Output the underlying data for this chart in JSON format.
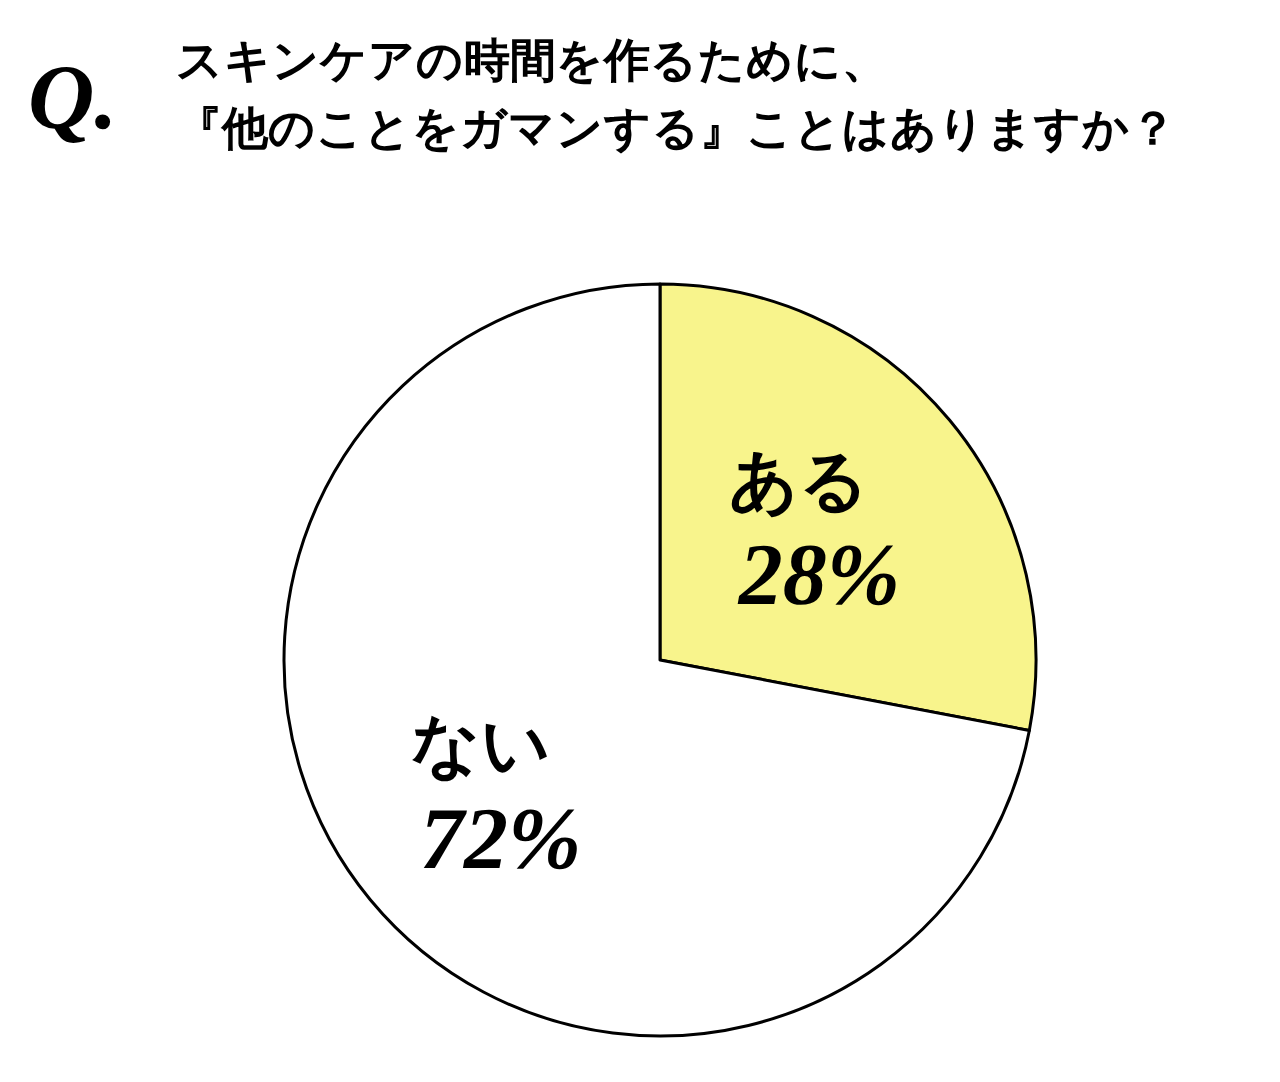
{
  "chart_data": {
    "type": "pie",
    "title": "スキンケアの時間を作るために、",
    "subtitle": "『他のことをガマンする』ことはありますか？",
    "annotations": [
      "Q."
    ],
    "categories": [
      "ある",
      "ない"
    ],
    "values": [
      28,
      72
    ],
    "colors": [
      "#f8f48c",
      "#ffffff"
    ],
    "value_labels": [
      "28%",
      "72%"
    ]
  }
}
